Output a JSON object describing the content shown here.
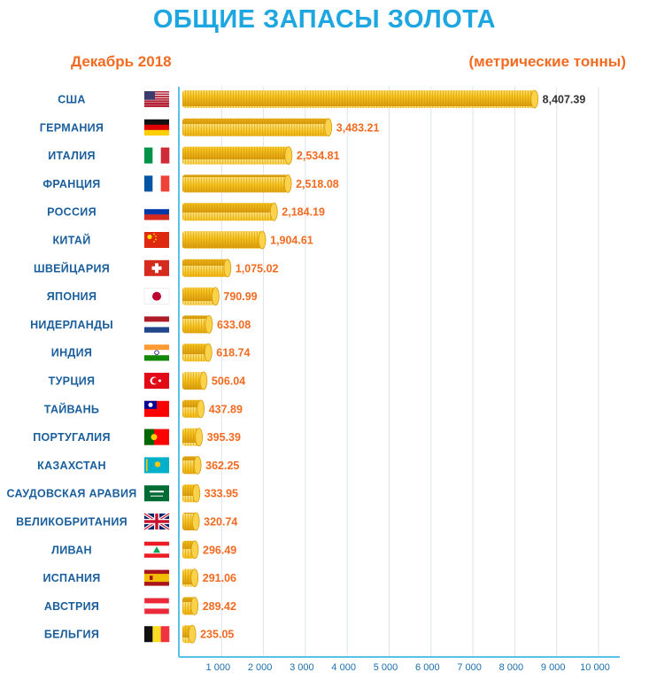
{
  "header": {
    "title": "ОБЩИЕ ЗАПАСЫ ЗОЛОТА",
    "subtitle_left": "Декабрь 2018",
    "subtitle_right": "(метрические тонны)"
  },
  "colors": {
    "title": "#1ea6e0",
    "accent": "#f26b21",
    "label": "#1a5e9c",
    "axis": "#5cc1e8",
    "grid": "#dde3ea",
    "coin": "#f6c21d",
    "coin_dark": "#d99a0c"
  },
  "chart_data": {
    "type": "bar",
    "orientation": "horizontal",
    "title": "ОБЩИЕ ЗАПАСЫ ЗОЛОТА",
    "subtitle": "Декабрь 2018",
    "unit": "(метрические тонны)",
    "xlim": [
      0,
      10000
    ],
    "grid": true,
    "x_ticks": [
      1000,
      2000,
      3000,
      4000,
      5000,
      6000,
      7000,
      8000,
      9000,
      10000
    ],
    "x_tick_labels": [
      "1 000",
      "2 000",
      "3 000",
      "4 000",
      "5 000",
      "6 000",
      "7 000",
      "8 000",
      "9 000",
      "10 000"
    ],
    "categories": [
      "США",
      "Германия",
      "Италия",
      "Франция",
      "Россия",
      "Китай",
      "Швейцария",
      "Япония",
      "Нидерланды",
      "Индия",
      "Турция",
      "Тайвань",
      "Португалия",
      "Казахстан",
      "Саудовская Аравия",
      "Великобритания",
      "Ливан",
      "Испания",
      "Австрия",
      "Бельгия"
    ],
    "values": [
      8407.39,
      3483.21,
      2534.81,
      2518.08,
      2184.19,
      1904.61,
      1075.02,
      790.99,
      633.08,
      618.74,
      506.04,
      437.89,
      395.39,
      362.25,
      333.95,
      320.74,
      296.49,
      291.06,
      289.42,
      235.05
    ],
    "value_labels": [
      "8,407.39",
      "3,483.21",
      "2,534.81",
      "2,518.08",
      "2,184.19",
      "1,904.61",
      "1,075.02",
      "790.99",
      "633.08",
      "618.74",
      "506.04",
      "437.89",
      "395.39",
      "362.25",
      "333.95",
      "320.74",
      "296.49",
      "291.06",
      "289.42",
      "235.05"
    ],
    "flags": [
      "us-flag-icon",
      "germany-flag-icon",
      "italy-flag-icon",
      "france-flag-icon",
      "russia-flag-icon",
      "china-flag-icon",
      "switzerland-flag-icon",
      "japan-flag-icon",
      "netherlands-flag-icon",
      "india-flag-icon",
      "turkey-flag-icon",
      "taiwan-flag-icon",
      "portugal-flag-icon",
      "kazakhstan-flag-icon",
      "saudi-arabia-flag-icon",
      "uk-flag-icon",
      "lebanon-flag-icon",
      "spain-flag-icon",
      "austria-flag-icon",
      "belgium-flag-icon"
    ]
  }
}
